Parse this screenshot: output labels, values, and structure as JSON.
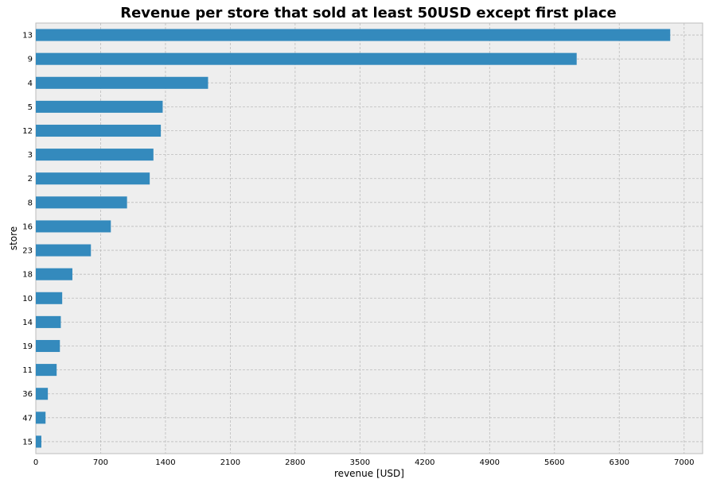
{
  "chart_data": {
    "type": "bar",
    "orientation": "horizontal",
    "title": "Revenue per store that sold at least 50USD except first place",
    "xlabel": "revenue [USD]",
    "ylabel": "store",
    "xlim": [
      0,
      7200
    ],
    "xticks": [
      0,
      700,
      1400,
      2100,
      2800,
      3500,
      4200,
      4900,
      5600,
      6300,
      7000
    ],
    "categories": [
      "13",
      "9",
      "4",
      "5",
      "12",
      "3",
      "2",
      "8",
      "16",
      "23",
      "18",
      "10",
      "14",
      "19",
      "11",
      "36",
      "47",
      "15"
    ],
    "values": [
      6850,
      5840,
      1860,
      1370,
      1350,
      1270,
      1230,
      985,
      810,
      595,
      395,
      285,
      270,
      260,
      225,
      130,
      105,
      60
    ],
    "grid": true,
    "legend": "none",
    "colors": {
      "bar": "#348abd",
      "plot_background": "#eeeeee",
      "grid": "#bcbcbc",
      "plot_border": "#bcbcbc"
    }
  }
}
